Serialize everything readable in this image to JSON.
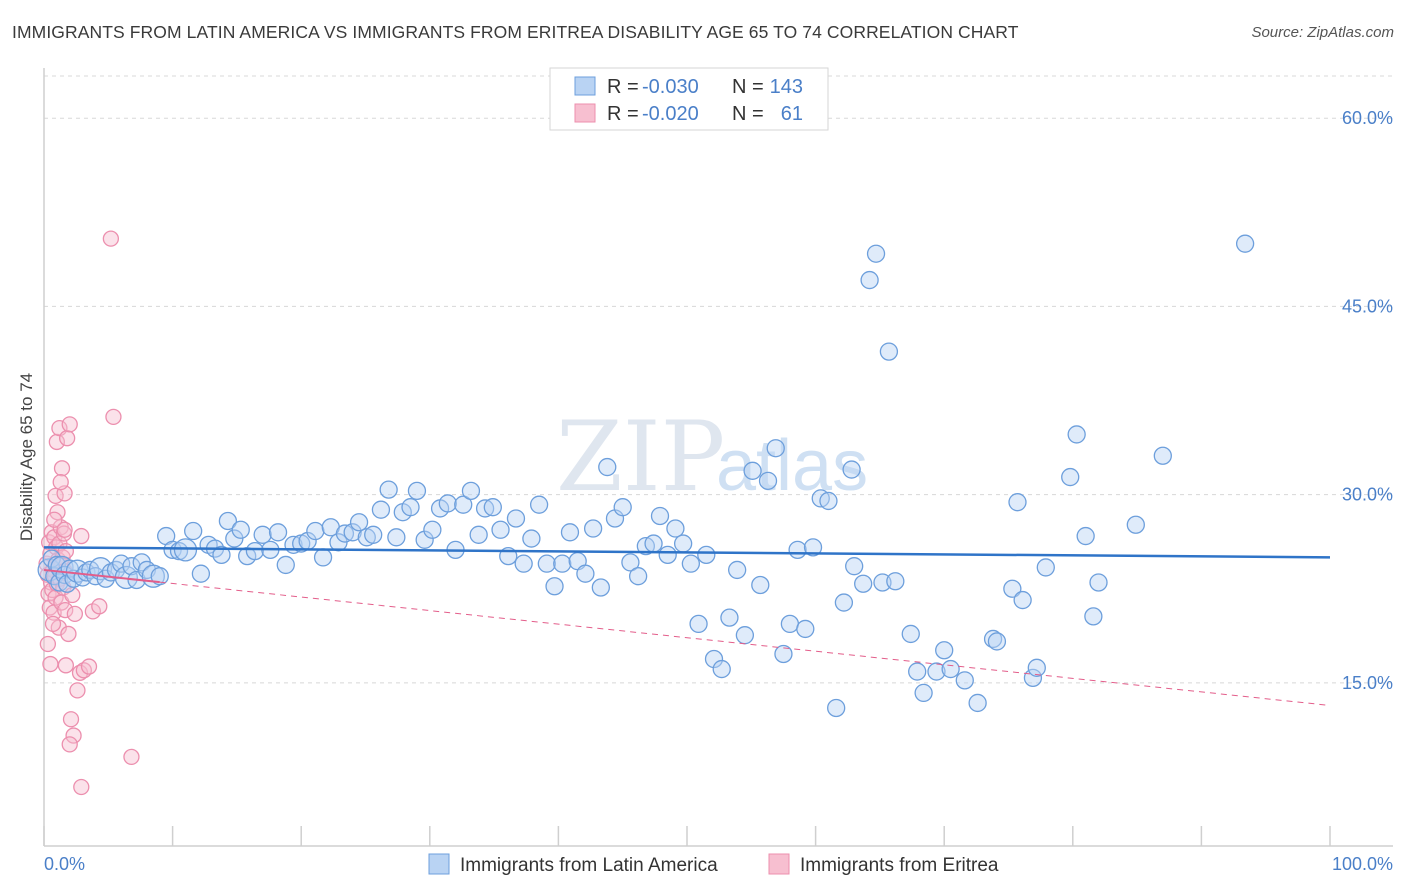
{
  "title": "IMMIGRANTS FROM LATIN AMERICA VS IMMIGRANTS FROM ERITREA DISABILITY AGE 65 TO 74 CORRELATION CHART",
  "source": "Source: ZipAtlas.com",
  "watermark": {
    "zip": "ZIP",
    "atlas": "atlas"
  },
  "colors": {
    "blue": "#4a7fc8",
    "blue_fill": "#b9d3f3",
    "blue_stroke": "#6d9fdc",
    "blue_line": "#2f74c8",
    "pink_fill": "#f7bfd0",
    "pink_stroke": "#ec8fae",
    "pink_line": "#e35d8a",
    "grid": "#d8d8d8"
  },
  "legend": {
    "rows": [
      {
        "r_label": "R =",
        "r_value": "-0.030",
        "n_label": "N =",
        "n_value": "143"
      },
      {
        "r_label": "R =",
        "r_value": "-0.020",
        "n_label": "N =",
        "n_value": "61"
      }
    ]
  },
  "chart_data": {
    "type": "scatter",
    "title": "IMMIGRANTS FROM LATIN AMERICA VS IMMIGRANTS FROM ERITREA DISABILITY AGE 65 TO 74 CORRELATION CHART",
    "xlabel": "",
    "ylabel": "Disability Age 65 to 74",
    "xlim": [
      0,
      100
    ],
    "ylim": [
      2,
      64
    ],
    "x_tick_labels": [
      "0.0%",
      "100.0%"
    ],
    "y_ticks": [
      15,
      30,
      45,
      60
    ],
    "y_tick_labels": [
      "15.0%",
      "30.0%",
      "45.0%",
      "60.0%"
    ],
    "grid": true,
    "legend_position": "top-center",
    "series": [
      {
        "name": "Immigrants from Latin America",
        "color": "#4a7fc8",
        "trend": {
          "x": [
            0,
            100
          ],
          "y": [
            25.8,
            25.0
          ]
        },
        "points": [
          [
            0.4,
            24.0
          ],
          [
            0.6,
            24.9
          ],
          [
            0.8,
            23.5
          ],
          [
            1.0,
            24.4
          ],
          [
            1.2,
            23.0
          ],
          [
            1.4,
            24.2
          ],
          [
            1.6,
            23.6
          ],
          [
            1.8,
            22.9
          ],
          [
            2.0,
            24.1
          ],
          [
            2.3,
            23.3
          ],
          [
            2.6,
            23.9
          ],
          [
            3.0,
            23.4
          ],
          [
            3.3,
            23.8
          ],
          [
            3.6,
            24.0
          ],
          [
            4.0,
            23.5
          ],
          [
            4.4,
            24.1
          ],
          [
            4.8,
            23.3
          ],
          [
            5.2,
            23.8
          ],
          [
            5.6,
            24.0
          ],
          [
            6.0,
            24.5
          ],
          [
            6.4,
            23.4
          ],
          [
            6.8,
            24.3
          ],
          [
            7.2,
            23.2
          ],
          [
            7.6,
            24.6
          ],
          [
            8.0,
            24.0
          ],
          [
            8.5,
            23.5
          ],
          [
            9.0,
            23.5
          ],
          [
            9.5,
            26.7
          ],
          [
            10.0,
            25.6
          ],
          [
            10.5,
            25.5
          ],
          [
            11.0,
            25.6
          ],
          [
            11.6,
            27.1
          ],
          [
            12.2,
            23.7
          ],
          [
            12.8,
            26.0
          ],
          [
            13.3,
            25.7
          ],
          [
            13.8,
            25.2
          ],
          [
            14.3,
            27.9
          ],
          [
            14.8,
            26.5
          ],
          [
            15.3,
            27.2
          ],
          [
            15.8,
            25.1
          ],
          [
            16.4,
            25.5
          ],
          [
            17.0,
            26.8
          ],
          [
            17.6,
            25.6
          ],
          [
            18.2,
            27.0
          ],
          [
            18.8,
            24.4
          ],
          [
            19.4,
            26.0
          ],
          [
            20.0,
            26.1
          ],
          [
            20.5,
            26.3
          ],
          [
            21.1,
            27.1
          ],
          [
            21.7,
            25.0
          ],
          [
            22.3,
            27.4
          ],
          [
            22.9,
            26.2
          ],
          [
            23.4,
            26.9
          ],
          [
            24.0,
            27.0
          ],
          [
            24.5,
            27.8
          ],
          [
            25.1,
            26.6
          ],
          [
            25.6,
            26.8
          ],
          [
            26.2,
            28.8
          ],
          [
            26.8,
            30.4
          ],
          [
            27.4,
            26.6
          ],
          [
            27.9,
            28.6
          ],
          [
            28.5,
            29.0
          ],
          [
            29.0,
            30.3
          ],
          [
            29.6,
            26.4
          ],
          [
            30.2,
            27.2
          ],
          [
            30.8,
            28.9
          ],
          [
            31.4,
            29.3
          ],
          [
            32.0,
            25.6
          ],
          [
            32.6,
            29.2
          ],
          [
            33.2,
            30.3
          ],
          [
            33.8,
            26.8
          ],
          [
            34.3,
            28.9
          ],
          [
            34.9,
            29.0
          ],
          [
            35.5,
            27.2
          ],
          [
            36.1,
            25.1
          ],
          [
            36.7,
            28.1
          ],
          [
            37.3,
            24.5
          ],
          [
            37.9,
            26.5
          ],
          [
            38.5,
            29.2
          ],
          [
            39.1,
            24.5
          ],
          [
            39.7,
            22.7
          ],
          [
            40.3,
            24.5
          ],
          [
            40.9,
            27.0
          ],
          [
            41.5,
            24.7
          ],
          [
            42.1,
            23.7
          ],
          [
            42.7,
            27.3
          ],
          [
            43.3,
            22.6
          ],
          [
            43.8,
            32.2
          ],
          [
            44.4,
            28.1
          ],
          [
            45.0,
            29.0
          ],
          [
            45.6,
            24.6
          ],
          [
            46.2,
            23.5
          ],
          [
            46.8,
            25.9
          ],
          [
            47.4,
            26.1
          ],
          [
            47.9,
            28.3
          ],
          [
            48.5,
            25.2
          ],
          [
            49.1,
            27.3
          ],
          [
            49.7,
            26.1
          ],
          [
            50.3,
            24.5
          ],
          [
            50.9,
            19.7
          ],
          [
            51.5,
            25.2
          ],
          [
            52.1,
            16.9
          ],
          [
            52.7,
            16.1
          ],
          [
            53.3,
            20.2
          ],
          [
            53.9,
            24.0
          ],
          [
            54.5,
            18.8
          ],
          [
            55.1,
            31.9
          ],
          [
            55.7,
            22.8
          ],
          [
            56.3,
            31.1
          ],
          [
            56.9,
            33.7
          ],
          [
            57.5,
            17.3
          ],
          [
            58.0,
            19.7
          ],
          [
            58.6,
            25.6
          ],
          [
            59.2,
            19.3
          ],
          [
            59.8,
            25.8
          ],
          [
            60.4,
            29.7
          ],
          [
            61.0,
            29.5
          ],
          [
            61.6,
            13.0
          ],
          [
            62.2,
            21.4
          ],
          [
            62.8,
            32.0
          ],
          [
            63.0,
            24.3
          ],
          [
            63.7,
            22.9
          ],
          [
            64.2,
            47.1
          ],
          [
            64.7,
            49.2
          ],
          [
            65.2,
            23.0
          ],
          [
            65.7,
            41.4
          ],
          [
            66.2,
            23.1
          ],
          [
            67.4,
            18.9
          ],
          [
            67.9,
            15.9
          ],
          [
            68.4,
            14.2
          ],
          [
            69.4,
            15.9
          ],
          [
            70.0,
            17.6
          ],
          [
            70.5,
            16.1
          ],
          [
            71.6,
            15.2
          ],
          [
            72.6,
            13.4
          ],
          [
            73.8,
            18.5
          ],
          [
            74.1,
            18.3
          ],
          [
            75.3,
            22.5
          ],
          [
            75.7,
            29.4
          ],
          [
            76.1,
            21.6
          ],
          [
            76.9,
            15.4
          ],
          [
            77.2,
            16.2
          ],
          [
            77.9,
            24.2
          ],
          [
            79.8,
            31.4
          ],
          [
            80.3,
            34.8
          ],
          [
            81.0,
            26.7
          ],
          [
            81.6,
            20.3
          ],
          [
            82.0,
            23.0
          ],
          [
            84.9,
            27.6
          ],
          [
            87.0,
            33.1
          ],
          [
            93.4,
            50.0
          ]
        ]
      },
      {
        "name": "Immigrants from Eritrea",
        "color": "#ec8fae",
        "trend": {
          "x": [
            0,
            100
          ],
          "y": [
            24.0,
            13.2
          ]
        },
        "points": [
          [
            0.2,
            24.5
          ],
          [
            0.3,
            23.6
          ],
          [
            0.35,
            22.1
          ],
          [
            0.4,
            26.2
          ],
          [
            0.45,
            21.0
          ],
          [
            0.5,
            25.3
          ],
          [
            0.55,
            23.0
          ],
          [
            0.6,
            27.0
          ],
          [
            0.65,
            22.4
          ],
          [
            0.7,
            24.0
          ],
          [
            0.75,
            20.6
          ],
          [
            0.8,
            26.6
          ],
          [
            0.85,
            23.5
          ],
          [
            0.9,
            21.8
          ],
          [
            0.95,
            25.8
          ],
          [
            1.0,
            22.9
          ],
          [
            1.05,
            28.6
          ],
          [
            1.1,
            24.8
          ],
          [
            1.15,
            19.4
          ],
          [
            1.2,
            26.1
          ],
          [
            1.25,
            23.3
          ],
          [
            1.3,
            27.4
          ],
          [
            1.35,
            21.4
          ],
          [
            1.4,
            24.4
          ],
          [
            1.45,
            25.0
          ],
          [
            1.5,
            22.6
          ],
          [
            1.55,
            26.9
          ],
          [
            1.6,
            23.9
          ],
          [
            1.65,
            20.8
          ],
          [
            1.7,
            25.5
          ],
          [
            0.3,
            18.1
          ],
          [
            0.5,
            16.5
          ],
          [
            0.7,
            19.7
          ],
          [
            0.8,
            28.0
          ],
          [
            0.9,
            29.9
          ],
          [
            1.0,
            34.2
          ],
          [
            1.2,
            35.3
          ],
          [
            1.4,
            32.1
          ],
          [
            1.6,
            30.1
          ],
          [
            1.8,
            34.5
          ],
          [
            2.0,
            35.6
          ],
          [
            1.3,
            31.0
          ],
          [
            2.2,
            22.0
          ],
          [
            2.4,
            20.5
          ],
          [
            1.9,
            18.9
          ],
          [
            1.7,
            16.4
          ],
          [
            2.6,
            14.4
          ],
          [
            2.8,
            15.8
          ],
          [
            3.1,
            16.0
          ],
          [
            3.5,
            16.3
          ],
          [
            2.1,
            12.1
          ],
          [
            2.3,
            10.8
          ],
          [
            2.0,
            10.1
          ],
          [
            2.9,
            6.7
          ],
          [
            6.8,
            9.1
          ],
          [
            3.8,
            20.7
          ],
          [
            4.3,
            21.1
          ],
          [
            5.2,
            50.4
          ],
          [
            5.4,
            36.2
          ],
          [
            2.9,
            26.7
          ],
          [
            1.6,
            27.2
          ]
        ]
      }
    ]
  },
  "bottom_legend": [
    {
      "label": "Immigrants from Latin America"
    },
    {
      "label": "Immigrants from Eritrea"
    }
  ]
}
